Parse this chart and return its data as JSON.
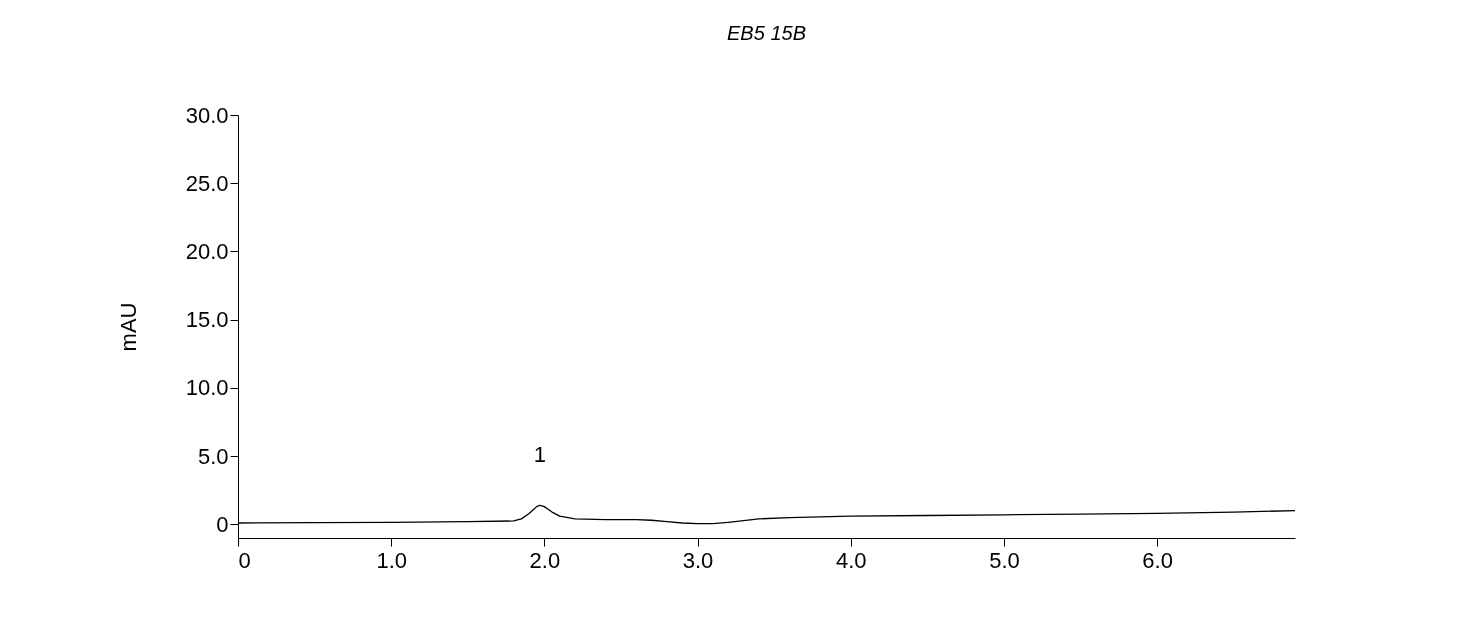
{
  "chart_data": {
    "type": "line",
    "title": "EB5 15B",
    "ylabel": "mAU",
    "x": [
      0,
      0.5,
      1.0,
      1.5,
      1.8,
      1.85,
      1.9,
      1.95,
      1.97,
      2.0,
      2.05,
      2.1,
      2.2,
      2.4,
      2.6,
      2.7,
      2.8,
      2.9,
      3.0,
      3.1,
      3.2,
      3.4,
      3.6,
      4.0,
      4.5,
      5.0,
      5.5,
      6.0,
      6.5,
      6.9
    ],
    "series": [
      {
        "color": "#000000",
        "values": [
          0.1,
          0.12,
          0.15,
          0.2,
          0.25,
          0.4,
          0.8,
          1.3,
          1.4,
          1.3,
          0.9,
          0.6,
          0.4,
          0.35,
          0.35,
          0.3,
          0.2,
          0.1,
          0.05,
          0.05,
          0.15,
          0.4,
          0.5,
          0.6,
          0.65,
          0.7,
          0.75,
          0.8,
          0.9,
          1.0
        ]
      }
    ],
    "xlim": [
      0,
      6.9
    ],
    "ylim": [
      -1,
      30
    ],
    "xticks": [
      0,
      {
        "value": 1,
        "label": "1.0"
      },
      {
        "value": 2,
        "label": "2.0"
      },
      {
        "value": 3,
        "label": "3.0"
      },
      {
        "value": 4,
        "label": "4.0"
      },
      {
        "value": 5,
        "label": "5.0"
      },
      {
        "value": 6,
        "label": "6.0"
      }
    ],
    "yticks": [
      0,
      {
        "value": 5,
        "label": "5.0"
      },
      {
        "value": 10,
        "label": "10.0"
      },
      {
        "value": 15,
        "label": "15.0"
      },
      {
        "value": 20,
        "label": "20.0"
      },
      {
        "value": 25,
        "label": "25.0"
      },
      {
        "value": 30,
        "label": "30.0"
      }
    ],
    "annotations": [
      "1"
    ],
    "grid": false,
    "marker": "none",
    "line_style": "solid"
  }
}
